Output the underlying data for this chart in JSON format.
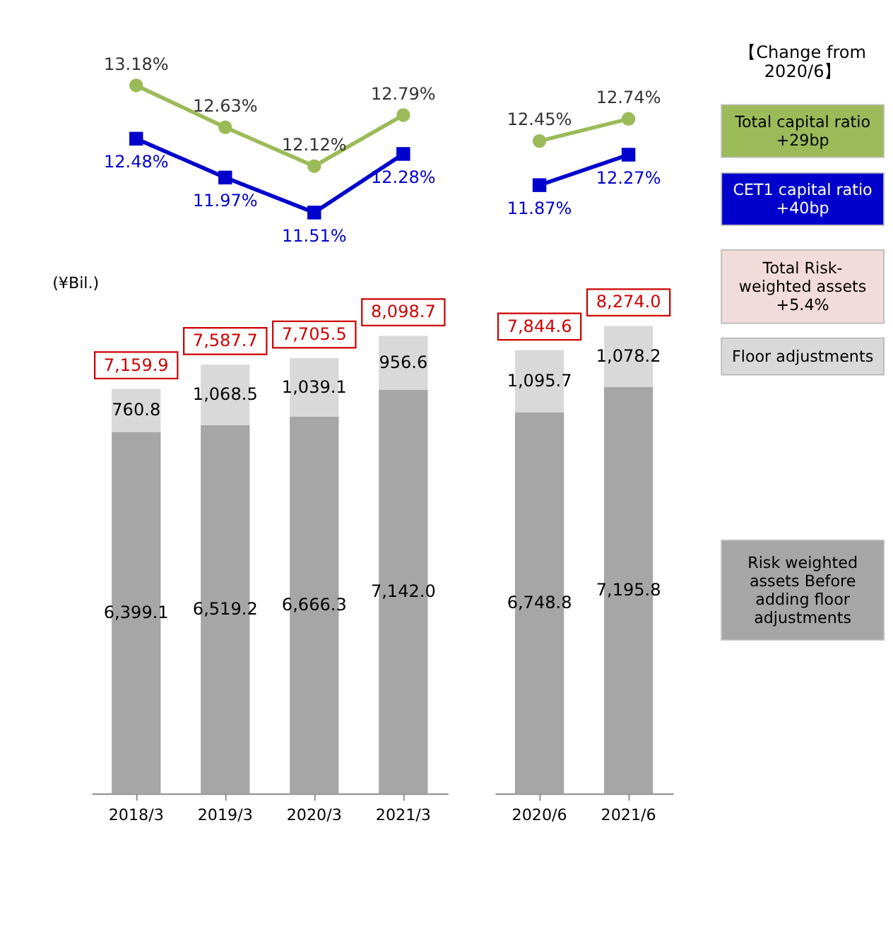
{
  "chart_data": [
    {
      "type": "line",
      "categories": [
        "2018/3",
        "2019/3",
        "2020/3",
        "2021/3"
      ],
      "tick_labels": false,
      "series": [
        {
          "color": "#9bbb59",
          "marker": "circle",
          "values": [
            13.18,
            12.63,
            12.12,
            12.79
          ],
          "value_labels": [
            "13.18%",
            "12.63%",
            "12.12%",
            "12.79%"
          ]
        },
        {
          "color": "#0000cc",
          "marker": "square",
          "values": [
            12.48,
            11.97,
            11.51,
            12.28
          ],
          "value_labels": [
            "12.48%",
            "11.97%",
            "11.51%",
            "12.28%"
          ]
        }
      ]
    },
    {
      "type": "bar",
      "categories": [
        "2018/3",
        "2019/3",
        "2020/3",
        "2021/3"
      ],
      "stacked": true,
      "series": [
        {
          "color": "#a6a6a6",
          "values": [
            6399.1,
            6519.2,
            6666.3,
            7142.0
          ],
          "value_labels": [
            "6,399.1",
            "6,519.2",
            "6,666.3",
            "7,142.0"
          ]
        },
        {
          "color": "#d9d9d9",
          "values": [
            760.8,
            1068.5,
            1039.1,
            956.6
          ],
          "value_labels": [
            "760.8",
            "1,068.5",
            "1,039.1",
            "956.6"
          ]
        }
      ],
      "totals": [
        "7,159.9",
        "7,587.7",
        "7,705.5",
        "8,098.7"
      ],
      "annotations": [
        "(¥Bil.)"
      ]
    },
    {
      "type": "line",
      "categories": [
        "2020/6",
        "2021/6"
      ],
      "tick_labels": false,
      "legend": "right",
      "series": [
        {
          "name": "Total capital ratio",
          "color": "#9bbb59",
          "marker": "circle",
          "values": [
            12.45,
            12.74
          ],
          "value_labels": [
            "12.45%",
            "12.74%"
          ]
        },
        {
          "name": "CET1 capital ratio",
          "color": "#0000cc",
          "marker": "square",
          "values": [
            11.87,
            12.27
          ],
          "value_labels": [
            "11.87%",
            "12.27%"
          ]
        }
      ],
      "annotations": [
        "+29bp",
        "+40bp"
      ]
    },
    {
      "type": "bar",
      "categories": [
        "2020/6",
        "2021/6"
      ],
      "stacked": true,
      "legend": "right",
      "legend_title": "【Change from 2020/6】",
      "series": [
        {
          "name": "Risk weighted assets Before adding floor adjustments",
          "color": "#a6a6a6",
          "values": [
            6748.8,
            7195.8
          ],
          "value_labels": [
            "6,748.8",
            "7,195.8"
          ]
        },
        {
          "name": "Floor adjustments",
          "color": "#d9d9d9",
          "values": [
            1095.7,
            1078.2
          ],
          "value_labels": [
            "1,095.7",
            "1,078.2"
          ]
        }
      ],
      "totals": [
        "7,844.6",
        "8,274.0"
      ],
      "annotations": [
        "Total Risk-weighted assets +5.4%"
      ]
    }
  ]
}
